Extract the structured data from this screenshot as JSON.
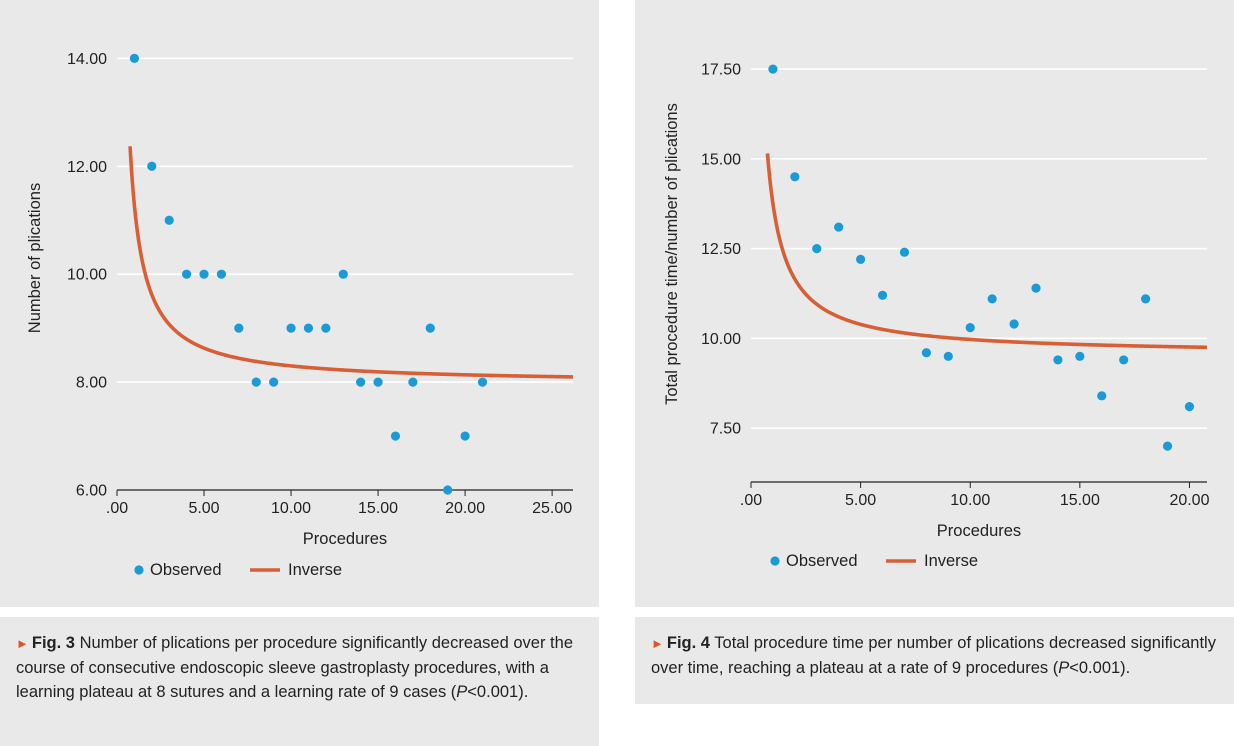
{
  "chart_data": [
    {
      "type": "scatter",
      "xlabel": "Procedures",
      "ylabel": "Number of plications",
      "xlim": [
        0,
        26.2
      ],
      "ylim": [
        6,
        14.6
      ],
      "xticks": [
        ".00",
        "5.00",
        "10.00",
        "15.00",
        "20.00",
        "25.00"
      ],
      "yticks": [
        "6.00",
        "8.00",
        "10.00",
        "12.00",
        "14.00"
      ],
      "grid": "horizontal",
      "legend_position": "bottom",
      "series": [
        {
          "name": "Observed",
          "kind": "points",
          "color": "#1a9ad6",
          "x": [
            1,
            2,
            3,
            4,
            5,
            6,
            7,
            8,
            9,
            10,
            11,
            12,
            13,
            14,
            15,
            16,
            17,
            18,
            19,
            20,
            21
          ],
          "y": [
            14,
            12,
            11,
            10,
            10,
            10,
            9,
            8,
            8,
            9,
            9,
            9,
            10,
            8,
            8,
            7,
            8,
            9,
            6,
            7,
            8
          ]
        },
        {
          "name": "Inverse",
          "kind": "curve",
          "color": "#d85f35",
          "model": "y = b0 + b1/x",
          "b0": 7.97,
          "b1": 3.3
        }
      ]
    },
    {
      "type": "scatter",
      "xlabel": "Procedures",
      "ylabel": "Total procedure time/number of plications",
      "xlim": [
        0,
        20.8
      ],
      "ylim": [
        6.0,
        18.7
      ],
      "xticks": [
        ".00",
        "5.00",
        "10.00",
        "15.00",
        "20.00"
      ],
      "yticks": [
        "7.50",
        "10.00",
        "12.50",
        "15.00",
        "17.50"
      ],
      "grid": "horizontal",
      "legend_position": "bottom",
      "series": [
        {
          "name": "Observed",
          "kind": "points",
          "color": "#1a9ad6",
          "x": [
            1,
            2,
            3,
            4,
            5,
            6,
            7,
            8,
            9,
            10,
            11,
            12,
            13,
            14,
            15,
            16,
            17,
            18,
            19,
            20
          ],
          "y": [
            17.5,
            14.5,
            12.5,
            13.1,
            12.2,
            11.2,
            12.4,
            9.6,
            9.5,
            10.3,
            11.1,
            10.4,
            11.4,
            9.4,
            9.5,
            8.4,
            9.4,
            11.1,
            7.0,
            8.1
          ]
        },
        {
          "name": "Inverse",
          "kind": "curve",
          "color": "#d85f35",
          "model": "y = b0 + b1/x",
          "b0": 9.55,
          "b1": 4.2
        }
      ]
    }
  ],
  "captions": [
    {
      "arrow": "►",
      "fig_label": "Fig. 3",
      "text_before_p": "Number of plications per procedure significantly decreased over the course of consecutive endoscopic sleeve gastroplasty procedures, with a learning plateau at 8 sutures and a learning rate of 9 cases (",
      "p_symbol": "P",
      "text_after_p": "<0.001)."
    },
    {
      "arrow": "►",
      "fig_label": "Fig. 4",
      "text_before_p": "Total procedure time per number of plications decreased significantly over time, reaching a plateau at a rate of 9 procedures (",
      "p_symbol": "P",
      "text_after_p": "<0.001)."
    }
  ]
}
